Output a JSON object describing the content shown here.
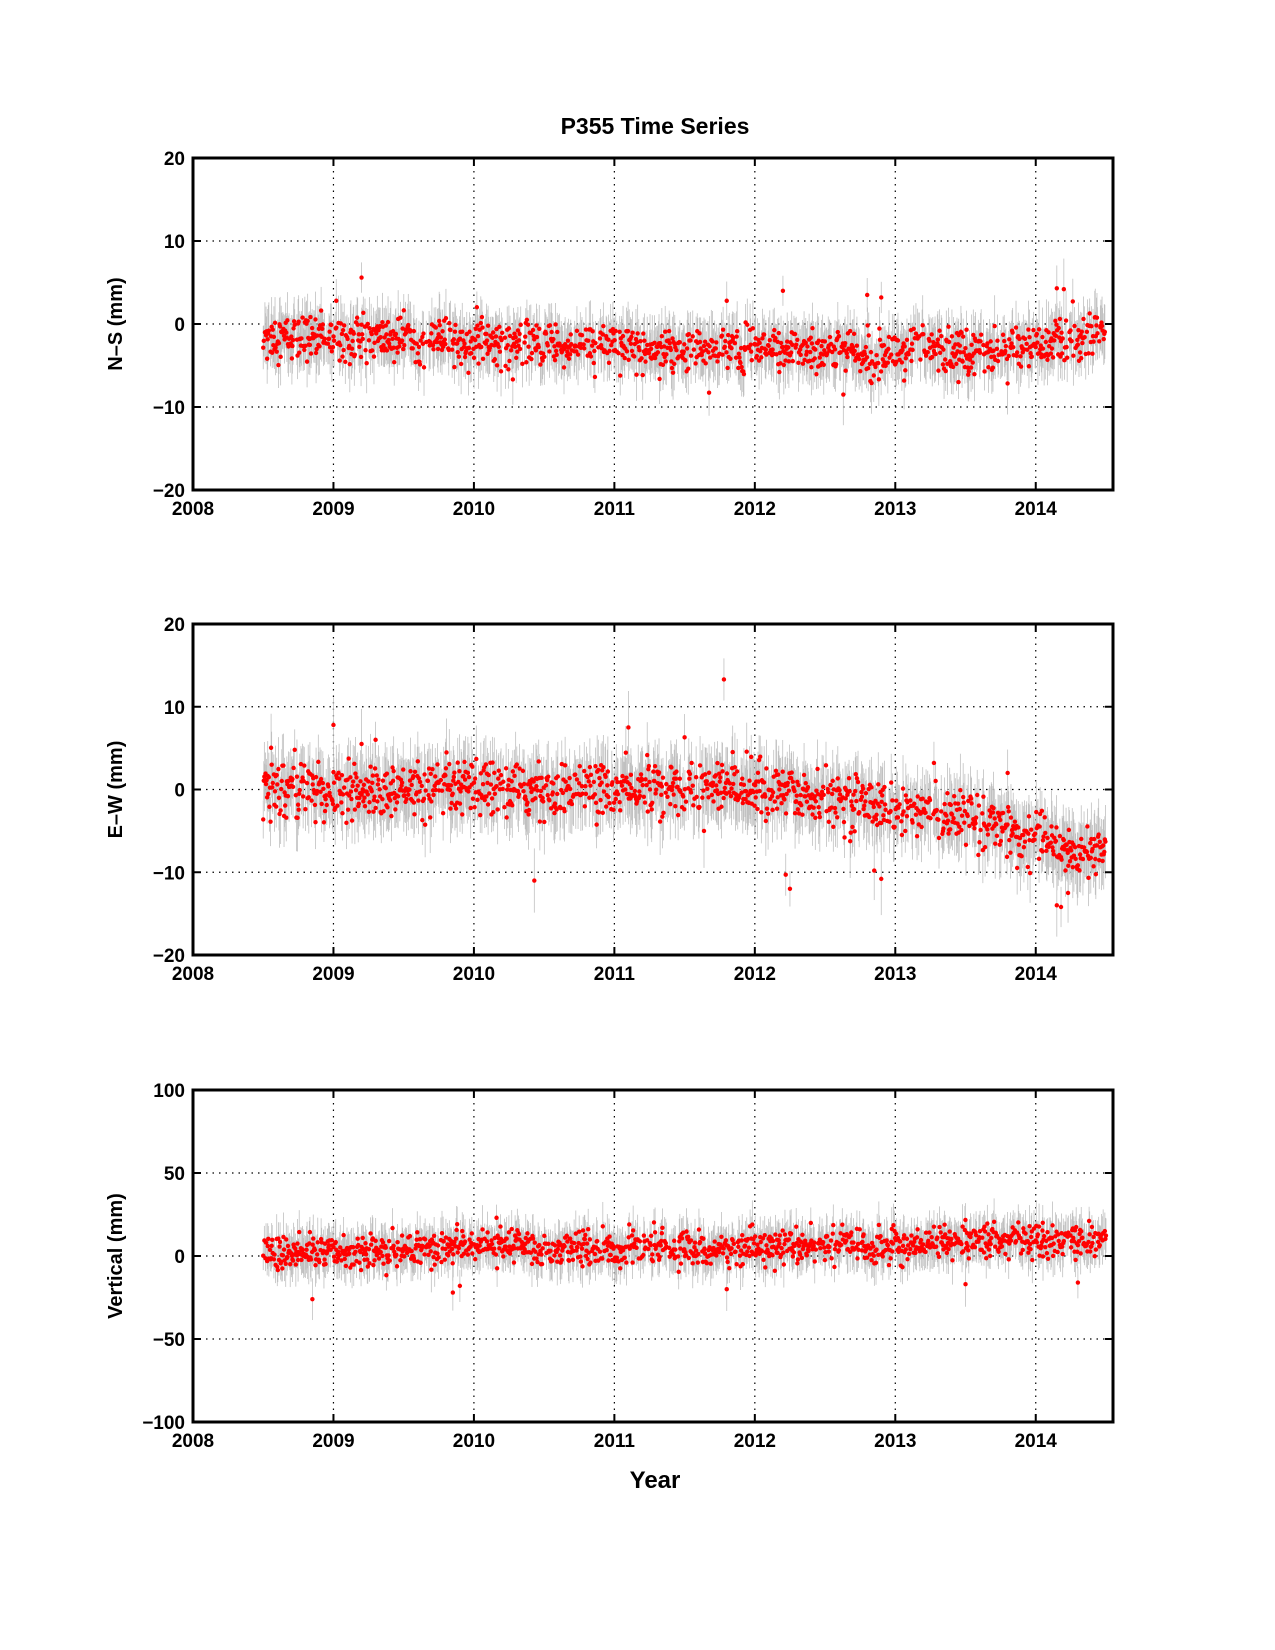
{
  "figure": {
    "title": "P355 Time Series",
    "xlabel": "Year"
  },
  "colors": {
    "point": "#ff0000",
    "errorbar": "#c0c0c0",
    "axis": "#000000",
    "grid": "#000000",
    "background": "#ffffff"
  },
  "chart_data": [
    {
      "type": "scatter",
      "panel": "north-south",
      "title": "P355 Time Series",
      "xlabel": "",
      "ylabel": "N–S (mm)",
      "xlim": [
        2008,
        2014.55
      ],
      "ylim": [
        -20,
        20
      ],
      "xticks": [
        2008,
        2009,
        2010,
        2011,
        2012,
        2013,
        2014
      ],
      "yticks": [
        -20,
        -10,
        0,
        10,
        20
      ],
      "ytick_labels": [
        "−20",
        "−10",
        "0",
        "10",
        "20"
      ],
      "grid": true,
      "error_bars": true,
      "data_range_x": [
        2008.5,
        2014.5
      ],
      "trend": [
        [
          2008.5,
          -1.5
        ],
        [
          2009.5,
          -1.8
        ],
        [
          2010.5,
          -2.5
        ],
        [
          2011.5,
          -3.0
        ],
        [
          2012.5,
          -3.3
        ],
        [
          2013.5,
          -3.2
        ],
        [
          2014.0,
          -2.8
        ],
        [
          2014.5,
          -1.0
        ]
      ],
      "scatter_sd": 1.3,
      "error_half_length": 2.5,
      "outliers": [
        [
          2009.02,
          2.8
        ],
        [
          2009.2,
          5.6
        ],
        [
          2011.8,
          2.8
        ],
        [
          2012.2,
          4.0
        ],
        [
          2012.8,
          3.5
        ],
        [
          2012.9,
          3.2
        ],
        [
          2012.63,
          -8.5
        ],
        [
          2014.15,
          4.3
        ],
        [
          2014.2,
          4.2
        ],
        [
          2013.45,
          -7.0
        ]
      ]
    },
    {
      "type": "scatter",
      "panel": "east-west",
      "xlabel": "",
      "ylabel": "E–W (mm)",
      "xlim": [
        2008,
        2014.55
      ],
      "ylim": [
        -20,
        20
      ],
      "xticks": [
        2008,
        2009,
        2010,
        2011,
        2012,
        2013,
        2014
      ],
      "yticks": [
        -20,
        -10,
        0,
        10,
        20
      ],
      "ytick_labels": [
        "−20",
        "−10",
        "0",
        "10",
        "20"
      ],
      "grid": true,
      "error_bars": true,
      "data_range_x": [
        2008.5,
        2014.5
      ],
      "trend": [
        [
          2008.5,
          0.5
        ],
        [
          2009.0,
          -0.5
        ],
        [
          2010.0,
          0.0
        ],
        [
          2011.0,
          0.0
        ],
        [
          2011.8,
          0.5
        ],
        [
          2012.5,
          -1.0
        ],
        [
          2013.0,
          -2.2
        ],
        [
          2013.5,
          -3.5
        ],
        [
          2014.0,
          -5.5
        ],
        [
          2014.25,
          -7.5
        ],
        [
          2014.5,
          -7.0
        ]
      ],
      "scatter_sd": 1.6,
      "error_half_length": 3.0,
      "outliers": [
        [
          2011.78,
          13.3
        ],
        [
          2009.0,
          7.8
        ],
        [
          2009.2,
          5.5
        ],
        [
          2009.3,
          6.0
        ],
        [
          2011.1,
          7.5
        ],
        [
          2011.5,
          6.3
        ],
        [
          2010.43,
          -11.0
        ],
        [
          2012.25,
          -12.0
        ],
        [
          2012.22,
          -10.3
        ],
        [
          2012.85,
          -9.8
        ],
        [
          2012.9,
          -10.8
        ],
        [
          2014.15,
          -14.0
        ],
        [
          2014.18,
          -14.2
        ],
        [
          2013.8,
          2.0
        ],
        [
          2014.23,
          -12.5
        ]
      ]
    },
    {
      "type": "scatter",
      "panel": "vertical",
      "xlabel": "Year",
      "ylabel": "Vertical (mm)",
      "xlim": [
        2008,
        2014.55
      ],
      "ylim": [
        -100,
        100
      ],
      "xticks": [
        2008,
        2009,
        2010,
        2011,
        2012,
        2013,
        2014
      ],
      "yticks": [
        -100,
        -50,
        0,
        50,
        100
      ],
      "ytick_labels": [
        "−100",
        "−50",
        "0",
        "50",
        "100"
      ],
      "grid": true,
      "error_bars": true,
      "data_range_x": [
        2008.5,
        2014.5
      ],
      "trend": [
        [
          2008.5,
          3
        ],
        [
          2009.0,
          2
        ],
        [
          2009.5,
          3
        ],
        [
          2010.0,
          7
        ],
        [
          2011.0,
          4
        ],
        [
          2012.0,
          5
        ],
        [
          2013.0,
          7
        ],
        [
          2014.0,
          9
        ],
        [
          2014.5,
          9
        ]
      ],
      "scatter_sd": 5,
      "error_half_length": 10,
      "outliers": [
        [
          2008.85,
          -26
        ],
        [
          2009.85,
          -22
        ],
        [
          2009.9,
          -18
        ],
        [
          2011.8,
          -20
        ],
        [
          2013.5,
          -17
        ],
        [
          2014.3,
          -16
        ],
        [
          2014.05,
          20
        ]
      ]
    }
  ]
}
